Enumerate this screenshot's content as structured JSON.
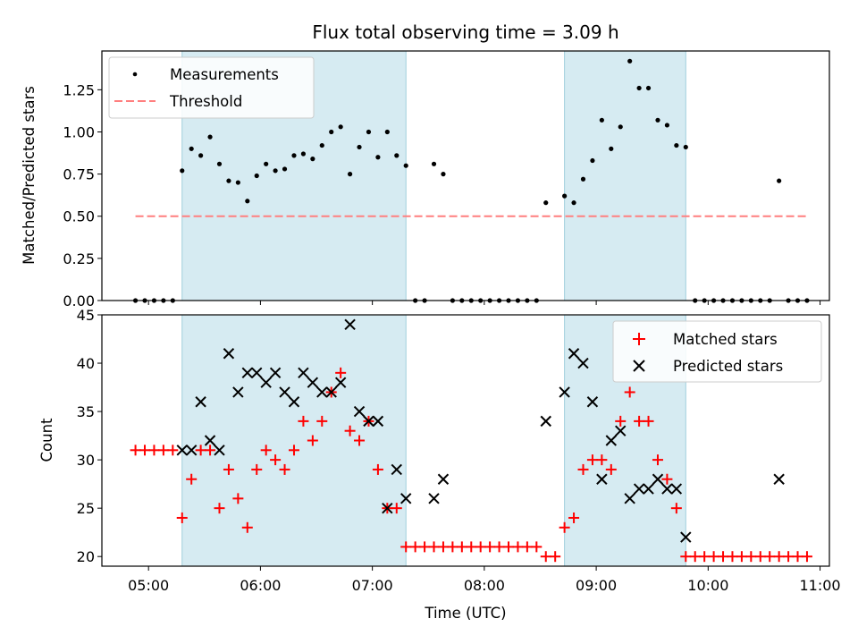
{
  "chart_data": [
    {
      "type": "scatter",
      "title": "Flux total observing time = 3.09 h",
      "xlabel": "",
      "ylabel": "Matched/Predicted stars",
      "xlim": [
        "04:35",
        "11:05"
      ],
      "ylim": [
        0,
        1.48
      ],
      "yticks": [
        "0.00",
        "0.25",
        "0.50",
        "0.75",
        "1.00",
        "1.25"
      ],
      "xticks": [
        "05:00",
        "06:00",
        "07:00",
        "08:00",
        "09:00",
        "10:00",
        "11:00"
      ],
      "grid": false,
      "legend_placement": "top-left",
      "observing_windows": [
        [
          "05:18",
          "07:18"
        ],
        [
          "08:43",
          "09:48"
        ]
      ],
      "threshold": {
        "name": "Threshold",
        "value": 0.5,
        "x_range": [
          "04:53",
          "10:53"
        ],
        "color": "#ff7f7f",
        "style": "dashed"
      },
      "series": [
        {
          "name": "Measurements",
          "marker": "dot",
          "color": "#000000",
          "points": [
            [
              "04:53",
              0
            ],
            [
              "04:58",
              0
            ],
            [
              "05:03",
              0
            ],
            [
              "05:08",
              0
            ],
            [
              "05:13",
              0
            ],
            [
              "05:18",
              0.77
            ],
            [
              "05:23",
              0.9
            ],
            [
              "05:28",
              0.86
            ],
            [
              "05:33",
              0.97
            ],
            [
              "05:38",
              0.81
            ],
            [
              "05:43",
              0.71
            ],
            [
              "05:48",
              0.7
            ],
            [
              "05:53",
              0.59
            ],
            [
              "05:58",
              0.74
            ],
            [
              "06:03",
              0.81
            ],
            [
              "06:08",
              0.77
            ],
            [
              "06:13",
              0.78
            ],
            [
              "06:18",
              0.86
            ],
            [
              "06:23",
              0.87
            ],
            [
              "06:28",
              0.84
            ],
            [
              "06:33",
              0.92
            ],
            [
              "06:38",
              1.0
            ],
            [
              "06:43",
              1.03
            ],
            [
              "06:48",
              0.75
            ],
            [
              "06:53",
              0.91
            ],
            [
              "06:58",
              1.0
            ],
            [
              "07:03",
              0.85
            ],
            [
              "07:08",
              1.0
            ],
            [
              "07:13",
              0.86
            ],
            [
              "07:18",
              0.8
            ],
            [
              "07:23",
              0
            ],
            [
              "07:28",
              0
            ],
            [
              "07:33",
              0.81
            ],
            [
              "07:38",
              0.75
            ],
            [
              "07:43",
              0
            ],
            [
              "07:48",
              0
            ],
            [
              "07:53",
              0
            ],
            [
              "07:58",
              0
            ],
            [
              "08:03",
              0
            ],
            [
              "08:08",
              0
            ],
            [
              "08:13",
              0
            ],
            [
              "08:18",
              0
            ],
            [
              "08:23",
              0
            ],
            [
              "08:28",
              0
            ],
            [
              "08:33",
              0.58
            ],
            [
              "08:43",
              0.62
            ],
            [
              "08:48",
              0.58
            ],
            [
              "08:53",
              0.72
            ],
            [
              "08:58",
              0.83
            ],
            [
              "09:03",
              1.07
            ],
            [
              "09:08",
              0.9
            ],
            [
              "09:13",
              1.03
            ],
            [
              "09:18",
              1.42
            ],
            [
              "09:23",
              1.26
            ],
            [
              "09:28",
              1.26
            ],
            [
              "09:33",
              1.07
            ],
            [
              "09:38",
              1.04
            ],
            [
              "09:43",
              0.92
            ],
            [
              "09:48",
              0.91
            ],
            [
              "09:53",
              0
            ],
            [
              "09:58",
              0
            ],
            [
              "10:03",
              0
            ],
            [
              "10:08",
              0
            ],
            [
              "10:13",
              0
            ],
            [
              "10:18",
              0
            ],
            [
              "10:23",
              0
            ],
            [
              "10:28",
              0
            ],
            [
              "10:33",
              0
            ],
            [
              "10:38",
              0.71
            ],
            [
              "10:43",
              0
            ],
            [
              "10:48",
              0
            ],
            [
              "10:53",
              0
            ]
          ]
        }
      ]
    },
    {
      "type": "scatter",
      "title": "",
      "xlabel": "Time (UTC)",
      "ylabel": "Count",
      "xlim": [
        "04:35",
        "11:05"
      ],
      "ylim": [
        19,
        45
      ],
      "yticks": [
        "20",
        "25",
        "30",
        "35",
        "40",
        "45"
      ],
      "xticks": [
        "05:00",
        "06:00",
        "07:00",
        "08:00",
        "09:00",
        "10:00",
        "11:00"
      ],
      "grid": false,
      "legend_placement": "top-right",
      "observing_windows": [
        [
          "05:18",
          "07:18"
        ],
        [
          "08:43",
          "09:48"
        ]
      ],
      "series": [
        {
          "name": "Matched stars",
          "marker": "plus",
          "color": "#ff0000",
          "points": [
            [
              "04:53",
              31
            ],
            [
              "04:58",
              31
            ],
            [
              "05:03",
              31
            ],
            [
              "05:08",
              31
            ],
            [
              "05:13",
              31
            ],
            [
              "05:18",
              24
            ],
            [
              "05:23",
              28
            ],
            [
              "05:28",
              31
            ],
            [
              "05:33",
              31
            ],
            [
              "05:38",
              25
            ],
            [
              "05:43",
              29
            ],
            [
              "05:48",
              26
            ],
            [
              "05:53",
              23
            ],
            [
              "05:58",
              29
            ],
            [
              "06:03",
              31
            ],
            [
              "06:08",
              30
            ],
            [
              "06:13",
              29
            ],
            [
              "06:18",
              31
            ],
            [
              "06:23",
              34
            ],
            [
              "06:28",
              32
            ],
            [
              "06:33",
              34
            ],
            [
              "06:38",
              37
            ],
            [
              "06:43",
              39
            ],
            [
              "06:48",
              33
            ],
            [
              "06:53",
              32
            ],
            [
              "06:58",
              34
            ],
            [
              "07:03",
              29
            ],
            [
              "07:08",
              25
            ],
            [
              "07:13",
              25
            ],
            [
              "07:18",
              21
            ],
            [
              "07:23",
              21
            ],
            [
              "07:28",
              21
            ],
            [
              "07:33",
              21
            ],
            [
              "07:38",
              21
            ],
            [
              "07:43",
              21
            ],
            [
              "07:48",
              21
            ],
            [
              "07:53",
              21
            ],
            [
              "07:58",
              21
            ],
            [
              "08:03",
              21
            ],
            [
              "08:08",
              21
            ],
            [
              "08:13",
              21
            ],
            [
              "08:18",
              21
            ],
            [
              "08:23",
              21
            ],
            [
              "08:28",
              21
            ],
            [
              "08:33",
              20
            ],
            [
              "08:38",
              20
            ],
            [
              "08:43",
              23
            ],
            [
              "08:48",
              24
            ],
            [
              "08:53",
              29
            ],
            [
              "08:58",
              30
            ],
            [
              "09:03",
              30
            ],
            [
              "09:08",
              29
            ],
            [
              "09:13",
              34
            ],
            [
              "09:18",
              37
            ],
            [
              "09:23",
              34
            ],
            [
              "09:28",
              34
            ],
            [
              "09:33",
              30
            ],
            [
              "09:38",
              28
            ],
            [
              "09:43",
              25
            ],
            [
              "09:48",
              20
            ],
            [
              "09:53",
              20
            ],
            [
              "09:58",
              20
            ],
            [
              "10:03",
              20
            ],
            [
              "10:08",
              20
            ],
            [
              "10:13",
              20
            ],
            [
              "10:18",
              20
            ],
            [
              "10:23",
              20
            ],
            [
              "10:28",
              20
            ],
            [
              "10:33",
              20
            ],
            [
              "10:38",
              20
            ],
            [
              "10:43",
              20
            ],
            [
              "10:48",
              20
            ],
            [
              "10:53",
              20
            ]
          ]
        },
        {
          "name": "Predicted stars",
          "marker": "x",
          "color": "#000000",
          "points": [
            [
              "05:18",
              31
            ],
            [
              "05:23",
              31
            ],
            [
              "05:28",
              36
            ],
            [
              "05:33",
              32
            ],
            [
              "05:38",
              31
            ],
            [
              "05:43",
              41
            ],
            [
              "05:48",
              37
            ],
            [
              "05:53",
              39
            ],
            [
              "05:58",
              39
            ],
            [
              "06:03",
              38
            ],
            [
              "06:08",
              39
            ],
            [
              "06:13",
              37
            ],
            [
              "06:18",
              36
            ],
            [
              "06:23",
              39
            ],
            [
              "06:28",
              38
            ],
            [
              "06:33",
              37
            ],
            [
              "06:38",
              37
            ],
            [
              "06:43",
              38
            ],
            [
              "06:48",
              44
            ],
            [
              "06:53",
              35
            ],
            [
              "06:58",
              34
            ],
            [
              "07:03",
              34
            ],
            [
              "07:08",
              25
            ],
            [
              "07:13",
              29
            ],
            [
              "07:18",
              26
            ],
            [
              "07:33",
              26
            ],
            [
              "07:38",
              28
            ],
            [
              "08:33",
              34
            ],
            [
              "08:43",
              37
            ],
            [
              "08:48",
              41
            ],
            [
              "08:53",
              40
            ],
            [
              "08:58",
              36
            ],
            [
              "09:03",
              28
            ],
            [
              "09:08",
              32
            ],
            [
              "09:13",
              33
            ],
            [
              "09:18",
              26
            ],
            [
              "09:23",
              27
            ],
            [
              "09:28",
              27
            ],
            [
              "09:33",
              28
            ],
            [
              "09:38",
              27
            ],
            [
              "09:43",
              27
            ],
            [
              "09:48",
              22
            ],
            [
              "10:38",
              28
            ]
          ]
        }
      ]
    }
  ]
}
